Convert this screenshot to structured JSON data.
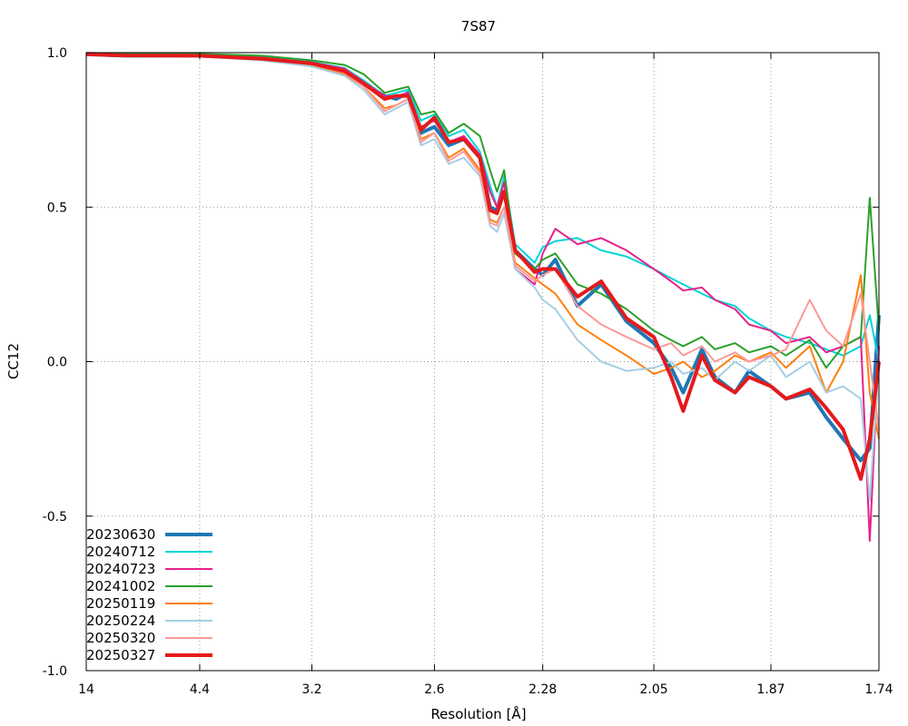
{
  "chart_data": {
    "type": "line",
    "title": "7S87",
    "xlabel": "Resolution [Å]",
    "ylabel": "CC12",
    "x_scale": "reciprocal-squared",
    "xlim": [
      14,
      1.74
    ],
    "ylim": [
      -1.0,
      1.0
    ],
    "grid": true,
    "legend_position": "bottom-left",
    "x_ticks": [
      "14",
      "4.4",
      "3.2",
      "2.6",
      "2.28",
      "2.05",
      "1.87",
      "1.74"
    ],
    "y_ticks": [
      "1.0",
      "0.5",
      "0.0",
      "-0.5",
      "-1.0"
    ],
    "series": [
      {
        "name": "20230630",
        "color": "#1f77b4",
        "width": 4,
        "x": [
          14,
          7,
          4.4,
          3.6,
          3.2,
          3.0,
          2.9,
          2.8,
          2.75,
          2.7,
          2.65,
          2.6,
          2.55,
          2.5,
          2.45,
          2.42,
          2.4,
          2.38,
          2.35,
          2.3,
          2.28,
          2.25,
          2.2,
          2.15,
          2.1,
          2.05,
          2.02,
          2.0,
          1.97,
          1.95,
          1.92,
          1.9,
          1.87,
          1.85,
          1.82,
          1.8,
          1.78,
          1.76,
          1.75,
          1.74
        ],
        "y": [
          0.995,
          0.99,
          0.99,
          0.98,
          0.965,
          0.94,
          0.9,
          0.86,
          0.85,
          0.87,
          0.74,
          0.76,
          0.7,
          0.72,
          0.66,
          0.5,
          0.49,
          0.55,
          0.36,
          0.3,
          0.28,
          0.33,
          0.18,
          0.25,
          0.13,
          0.06,
          -0.02,
          -0.1,
          0.04,
          -0.05,
          -0.1,
          -0.03,
          -0.08,
          -0.12,
          -0.1,
          -0.18,
          -0.25,
          -0.32,
          -0.28,
          0.15
        ]
      },
      {
        "name": "20240712",
        "color": "#00d5d5",
        "width": 2,
        "x": [
          14,
          7,
          4.4,
          3.6,
          3.2,
          3.0,
          2.9,
          2.8,
          2.75,
          2.7,
          2.65,
          2.6,
          2.55,
          2.5,
          2.45,
          2.42,
          2.4,
          2.38,
          2.35,
          2.3,
          2.28,
          2.25,
          2.2,
          2.15,
          2.1,
          2.05,
          2.02,
          2.0,
          1.97,
          1.95,
          1.92,
          1.9,
          1.87,
          1.85,
          1.82,
          1.8,
          1.78,
          1.76,
          1.75,
          1.74
        ],
        "y": [
          0.998,
          0.995,
          0.994,
          0.985,
          0.97,
          0.95,
          0.91,
          0.86,
          0.87,
          0.88,
          0.78,
          0.8,
          0.73,
          0.75,
          0.68,
          0.57,
          0.5,
          0.6,
          0.38,
          0.32,
          0.37,
          0.39,
          0.4,
          0.36,
          0.34,
          0.3,
          0.27,
          0.25,
          0.22,
          0.2,
          0.18,
          0.14,
          0.1,
          0.08,
          0.06,
          0.04,
          0.02,
          0.05,
          0.15,
          0.0
        ]
      },
      {
        "name": "20240723",
        "color": "#e8208a",
        "width": 2,
        "x": [
          14,
          7,
          4.4,
          3.6,
          3.2,
          3.0,
          2.9,
          2.8,
          2.75,
          2.7,
          2.65,
          2.6,
          2.55,
          2.5,
          2.45,
          2.42,
          2.4,
          2.38,
          2.35,
          2.3,
          2.28,
          2.25,
          2.2,
          2.15,
          2.1,
          2.05,
          2.02,
          2.0,
          1.97,
          1.95,
          1.92,
          1.9,
          1.87,
          1.85,
          1.82,
          1.8,
          1.78,
          1.76,
          1.75,
          1.74
        ],
        "y": [
          0.997,
          0.994,
          0.993,
          0.984,
          0.968,
          0.948,
          0.905,
          0.86,
          0.86,
          0.87,
          0.76,
          0.78,
          0.71,
          0.73,
          0.67,
          0.55,
          0.5,
          0.58,
          0.3,
          0.25,
          0.35,
          0.43,
          0.38,
          0.4,
          0.36,
          0.3,
          0.26,
          0.23,
          0.24,
          0.2,
          0.17,
          0.12,
          0.1,
          0.06,
          0.08,
          0.03,
          0.05,
          0.08,
          -0.58,
          0.05
        ]
      },
      {
        "name": "20241002",
        "color": "#2ca02c",
        "width": 2,
        "x": [
          14,
          7,
          4.4,
          3.6,
          3.2,
          3.0,
          2.9,
          2.8,
          2.75,
          2.7,
          2.65,
          2.6,
          2.55,
          2.5,
          2.45,
          2.42,
          2.4,
          2.38,
          2.35,
          2.3,
          2.28,
          2.25,
          2.2,
          2.15,
          2.1,
          2.05,
          2.02,
          2.0,
          1.97,
          1.95,
          1.92,
          1.9,
          1.87,
          1.85,
          1.82,
          1.8,
          1.78,
          1.76,
          1.75,
          1.74
        ],
        "y": [
          0.999,
          0.997,
          0.996,
          0.99,
          0.975,
          0.96,
          0.93,
          0.87,
          0.88,
          0.89,
          0.8,
          0.81,
          0.74,
          0.77,
          0.73,
          0.62,
          0.55,
          0.62,
          0.35,
          0.3,
          0.33,
          0.35,
          0.25,
          0.22,
          0.17,
          0.1,
          0.07,
          0.05,
          0.08,
          0.04,
          0.06,
          0.03,
          0.05,
          0.02,
          0.07,
          -0.02,
          0.05,
          0.08,
          0.53,
          0.1
        ]
      },
      {
        "name": "20250119",
        "color": "#ff7f0e",
        "width": 2,
        "x": [
          14,
          7,
          4.4,
          3.6,
          3.2,
          3.0,
          2.9,
          2.8,
          2.75,
          2.7,
          2.65,
          2.6,
          2.55,
          2.5,
          2.45,
          2.42,
          2.4,
          2.38,
          2.35,
          2.3,
          2.28,
          2.25,
          2.2,
          2.15,
          2.1,
          2.05,
          2.02,
          2.0,
          1.97,
          1.95,
          1.92,
          1.9,
          1.87,
          1.85,
          1.82,
          1.8,
          1.78,
          1.76,
          1.75,
          1.74
        ],
        "y": [
          0.995,
          0.99,
          0.989,
          0.978,
          0.96,
          0.93,
          0.89,
          0.82,
          0.83,
          0.85,
          0.72,
          0.74,
          0.66,
          0.69,
          0.62,
          0.46,
          0.45,
          0.5,
          0.32,
          0.27,
          0.25,
          0.22,
          0.12,
          0.07,
          0.02,
          -0.04,
          -0.02,
          0.0,
          -0.05,
          -0.03,
          0.02,
          0.0,
          0.03,
          -0.02,
          0.05,
          -0.1,
          0.0,
          0.28,
          -0.1,
          -0.25
        ]
      },
      {
        "name": "20250224",
        "color": "#a6cee3",
        "width": 2,
        "x": [
          14,
          7,
          4.4,
          3.6,
          3.2,
          3.0,
          2.9,
          2.8,
          2.75,
          2.7,
          2.65,
          2.6,
          2.55,
          2.5,
          2.45,
          2.42,
          2.4,
          2.38,
          2.35,
          2.3,
          2.28,
          2.25,
          2.2,
          2.15,
          2.1,
          2.05,
          2.02,
          2.0,
          1.97,
          1.95,
          1.92,
          1.9,
          1.87,
          1.85,
          1.82,
          1.8,
          1.78,
          1.76,
          1.75,
          1.74
        ],
        "y": [
          0.995,
          0.99,
          0.988,
          0.975,
          0.955,
          0.925,
          0.88,
          0.8,
          0.82,
          0.84,
          0.7,
          0.72,
          0.64,
          0.66,
          0.6,
          0.44,
          0.42,
          0.48,
          0.3,
          0.24,
          0.2,
          0.17,
          0.07,
          0.0,
          -0.03,
          -0.02,
          0.0,
          -0.04,
          -0.02,
          -0.06,
          0.0,
          -0.03,
          0.02,
          -0.05,
          0.0,
          -0.1,
          -0.08,
          -0.12,
          -0.45,
          0.0
        ]
      },
      {
        "name": "20250320",
        "color": "#fb9a99",
        "width": 2,
        "x": [
          14,
          7,
          4.4,
          3.6,
          3.2,
          3.0,
          2.9,
          2.8,
          2.75,
          2.7,
          2.65,
          2.6,
          2.55,
          2.5,
          2.45,
          2.42,
          2.4,
          2.38,
          2.35,
          2.3,
          2.28,
          2.25,
          2.2,
          2.15,
          2.1,
          2.05,
          2.02,
          2.0,
          1.97,
          1.95,
          1.92,
          1.9,
          1.87,
          1.85,
          1.82,
          1.8,
          1.78,
          1.76,
          1.75,
          1.74
        ],
        "y": [
          0.996,
          0.992,
          0.99,
          0.98,
          0.962,
          0.935,
          0.89,
          0.81,
          0.83,
          0.85,
          0.71,
          0.74,
          0.65,
          0.68,
          0.61,
          0.45,
          0.44,
          0.5,
          0.31,
          0.26,
          0.28,
          0.3,
          0.18,
          0.12,
          0.08,
          0.04,
          0.06,
          0.02,
          0.05,
          0.0,
          0.03,
          0.0,
          0.02,
          0.04,
          0.2,
          0.1,
          0.05,
          0.22,
          0.0,
          -0.22
        ]
      },
      {
        "name": "20250327",
        "color": "#e41a1c",
        "width": 4,
        "x": [
          14,
          7,
          4.4,
          3.6,
          3.2,
          3.0,
          2.9,
          2.8,
          2.75,
          2.7,
          2.65,
          2.6,
          2.55,
          2.5,
          2.45,
          2.42,
          2.4,
          2.38,
          2.35,
          2.3,
          2.28,
          2.25,
          2.2,
          2.15,
          2.1,
          2.05,
          2.02,
          2.0,
          1.97,
          1.95,
          1.92,
          1.9,
          1.87,
          1.85,
          1.82,
          1.8,
          1.78,
          1.76,
          1.75,
          1.74
        ],
        "y": [
          0.995,
          0.991,
          0.99,
          0.98,
          0.965,
          0.94,
          0.9,
          0.85,
          0.86,
          0.86,
          0.75,
          0.79,
          0.71,
          0.72,
          0.66,
          0.49,
          0.48,
          0.55,
          0.36,
          0.29,
          0.3,
          0.3,
          0.21,
          0.26,
          0.14,
          0.08,
          -0.05,
          -0.16,
          0.02,
          -0.06,
          -0.1,
          -0.05,
          -0.08,
          -0.12,
          -0.09,
          -0.15,
          -0.22,
          -0.38,
          -0.25,
          0.0
        ]
      }
    ]
  }
}
